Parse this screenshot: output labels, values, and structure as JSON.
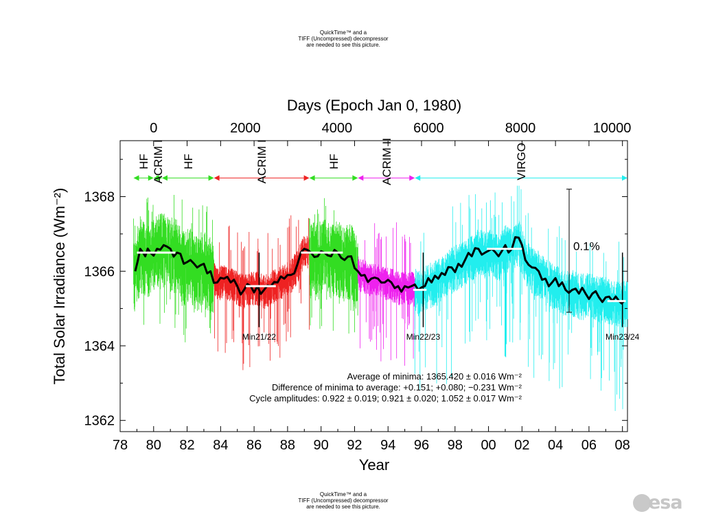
{
  "quicktime_top": [
    "QuickTime™ and a",
    "TIFF (Uncompressed) decompressor",
    "are needed to see this picture."
  ],
  "quicktime_bottom": [
    "QuickTime™ and a",
    "TIFF (Uncompressed) decompressor",
    "are needed to see this picture."
  ],
  "logo": {
    "text": "esa",
    "color": "#c6c6c6"
  },
  "chart_data": {
    "type": "line",
    "top_axis": {
      "label": "Days (Epoch Jan 0, 1980)",
      "ticks": [
        0,
        2000,
        4000,
        6000,
        8000,
        10000
      ]
    },
    "xlabel": "Year",
    "ylabel": "Total Solar Irradiance (Wm⁻²)",
    "xticks": [
      "78",
      "80",
      "82",
      "84",
      "86",
      "88",
      "90",
      "92",
      "94",
      "96",
      "98",
      "00",
      "02",
      "04",
      "06",
      "08"
    ],
    "xlim": [
      1978,
      2008.3
    ],
    "ylim": [
      1361.7,
      1369.5
    ],
    "yticks": [
      1362,
      1364,
      1366,
      1368
    ],
    "colors": {
      "HF": "#33dd22",
      "ACRIM I": "#ee2222",
      "ACRIM II": "#ee22ee",
      "VIRGO": "#22eeee",
      "composite": "#000000",
      "cycle_average": "#ffffff"
    },
    "instruments": [
      {
        "name": "HF",
        "start": 1978.8,
        "end": 1980.0,
        "color": "#33dd22"
      },
      {
        "name": "ACRIM I",
        "start": 1980.0,
        "end": 1980.5,
        "color": "#33dd22"
      },
      {
        "name": "HF",
        "start": 1980.5,
        "end": 1983.6,
        "color": "#33dd22"
      },
      {
        "name": "ACRIM I",
        "start": 1983.6,
        "end": 1989.3,
        "color": "#ee2222"
      },
      {
        "name": "HF",
        "start": 1989.3,
        "end": 1992.2,
        "color": "#33dd22"
      },
      {
        "name": "ACRIM II",
        "start": 1992.2,
        "end": 1995.6,
        "color": "#ee22ee"
      },
      {
        "name": "VIRGO",
        "start": 1995.6,
        "end": 2008.3,
        "color": "#22eeee"
      }
    ],
    "composite": {
      "x": [
        1978.9,
        1979.2,
        1979.5,
        1979.8,
        1980.2,
        1980.6,
        1981.0,
        1981.4,
        1981.8,
        1982.2,
        1982.6,
        1983.0,
        1983.4,
        1983.8,
        1984.2,
        1984.6,
        1985.0,
        1985.4,
        1985.8,
        1986.2,
        1986.6,
        1987.0,
        1987.4,
        1987.8,
        1988.2,
        1988.6,
        1989.0,
        1989.4,
        1989.8,
        1990.2,
        1990.6,
        1991.0,
        1991.4,
        1991.8,
        1992.2,
        1992.6,
        1993.0,
        1993.4,
        1993.8,
        1994.2,
        1994.6,
        1995.0,
        1995.4,
        1995.8,
        1996.2,
        1996.6,
        1997.0,
        1997.4,
        1997.8,
        1998.2,
        1998.6,
        1999.0,
        1999.4,
        1999.8,
        2000.2,
        2000.6,
        2001.0,
        2001.4,
        2001.8,
        2002.2,
        2002.6,
        2003.0,
        2003.4,
        2003.8,
        2004.2,
        2004.6,
        2005.0,
        2005.4,
        2005.8,
        2006.2,
        2006.6,
        2007.0,
        2007.4,
        2007.8,
        2008.1
      ],
      "y": [
        1366.0,
        1366.6,
        1366.4,
        1366.5,
        1366.6,
        1366.7,
        1366.6,
        1366.5,
        1366.2,
        1366.3,
        1366.1,
        1366.2,
        1366.0,
        1365.7,
        1365.8,
        1365.7,
        1365.6,
        1365.5,
        1365.6,
        1365.6,
        1365.5,
        1365.6,
        1365.7,
        1365.8,
        1365.9,
        1366.2,
        1366.6,
        1366.5,
        1366.4,
        1366.5,
        1366.4,
        1366.5,
        1366.3,
        1366.4,
        1366.0,
        1365.9,
        1365.8,
        1365.8,
        1365.7,
        1365.7,
        1365.6,
        1365.6,
        1365.6,
        1365.5,
        1365.6,
        1365.7,
        1365.8,
        1365.9,
        1366.1,
        1366.2,
        1366.3,
        1366.4,
        1366.6,
        1366.5,
        1366.6,
        1366.4,
        1366.7,
        1366.6,
        1366.9,
        1366.3,
        1366.1,
        1366.0,
        1365.8,
        1365.7,
        1365.6,
        1365.5,
        1365.5,
        1365.4,
        1365.4,
        1365.4,
        1365.3,
        1365.3,
        1365.2,
        1365.2,
        1365.2
      ]
    },
    "cycle_averages": [
      {
        "x": [
          1979.0,
          1981.3
        ],
        "y": 1366.5
      },
      {
        "x": [
          1985.5,
          1987.3
        ],
        "y": 1365.6
      },
      {
        "x": [
          1988.8,
          1991.3
        ],
        "y": 1366.5
      },
      {
        "x": [
          1995.5,
          1996.3
        ],
        "y": 1365.5
      },
      {
        "x": [
          1999.9,
          2002.0
        ],
        "y": 1366.6
      },
      {
        "x": [
          2007.1,
          2008.2
        ],
        "y": 1365.2
      }
    ],
    "minima": [
      {
        "label": "Min21/22",
        "year": 1986.3
      },
      {
        "label": "Min22/23",
        "year": 1996.1
      },
      {
        "label": "Min23/24",
        "year": 2008.0
      }
    ],
    "scale_bar": {
      "label": "0.1%",
      "low": 1364.9,
      "high": 1368.2
    },
    "annotations": [
      "Average of minima:  1365.420 ± 0.016 Wm⁻²",
      "Difference of minima to average: +0.151; +0.080; −0.231 Wm⁻²",
      "Cycle amplitudes:  0.922 ± 0.019; 0.921 ± 0.020; 1.052 ± 0.017 Wm⁻²"
    ],
    "grid": false
  }
}
